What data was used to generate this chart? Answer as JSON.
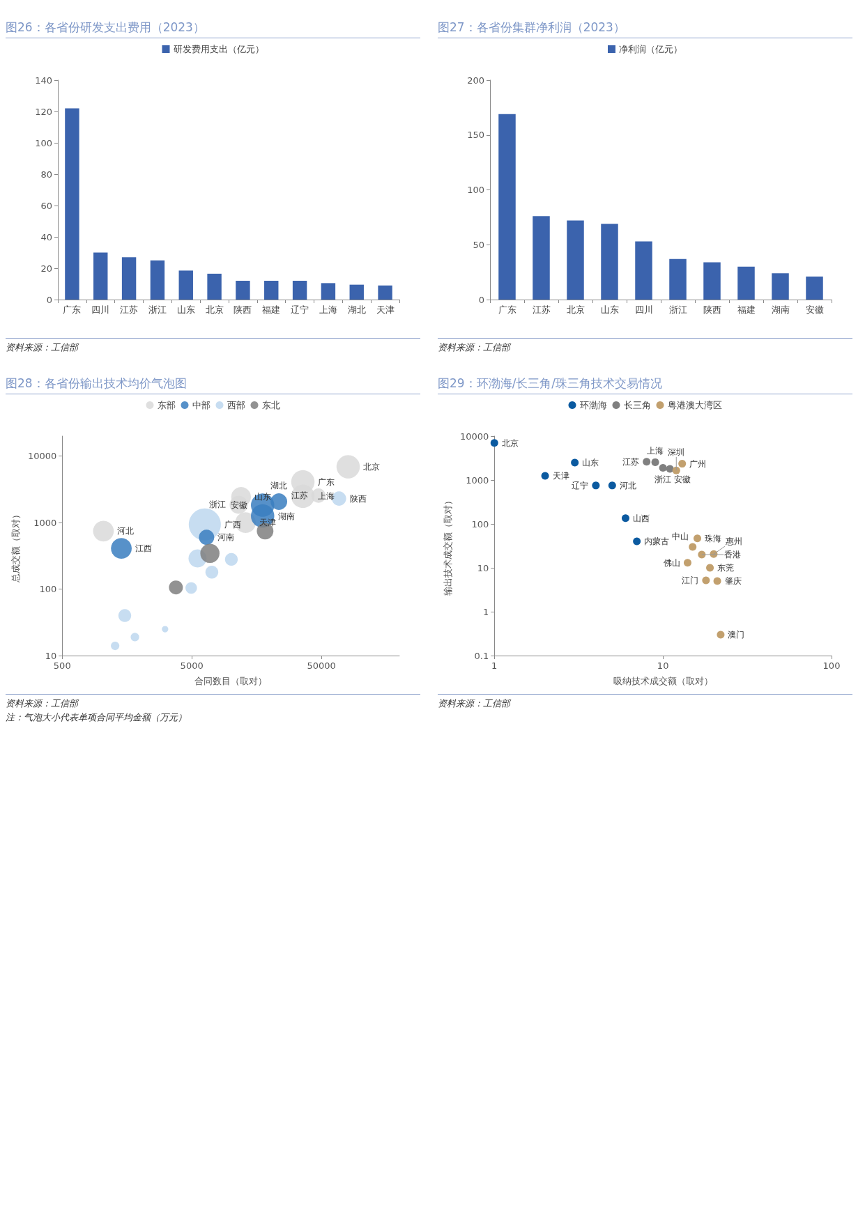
{
  "chart_data": [
    {
      "type": "bar",
      "title": "图26：各省份研发支出费用（2023）",
      "categories": [
        "广东",
        "四川",
        "江苏",
        "浙江",
        "山东",
        "北京",
        "陕西",
        "福建",
        "辽宁",
        "上海",
        "湖北",
        "天津"
      ],
      "series": [
        {
          "name": "研发费用支出（亿元）",
          "color": "#3b63ad",
          "values": [
            122,
            30,
            27,
            25,
            18.5,
            16.5,
            12,
            12,
            12,
            10.5,
            9.5,
            9
          ]
        }
      ],
      "ylim": [
        0,
        140
      ],
      "yticks": [
        0,
        20,
        40,
        60,
        80,
        100,
        120,
        140
      ],
      "legend": "top",
      "annotations": [
        "资料来源：工信部"
      ]
    },
    {
      "type": "bar",
      "title": "图27：各省份集群净利润（2023）",
      "categories": [
        "广东",
        "江苏",
        "北京",
        "山东",
        "四川",
        "浙江",
        "陕西",
        "福建",
        "湖南",
        "安徽"
      ],
      "series": [
        {
          "name": "净利润（亿元）",
          "color": "#3b63ad",
          "values": [
            169,
            76,
            72,
            69,
            53,
            37,
            34,
            30,
            24,
            21
          ]
        }
      ],
      "ylim": [
        0,
        200
      ],
      "yticks": [
        0,
        50,
        100,
        150,
        200
      ],
      "legend": "top",
      "annotations": [
        "资料来源：工信部"
      ]
    },
    {
      "type": "bubble",
      "title": "图28：各省份输出技术均价气泡图",
      "xlabel": "合同数目（取对）",
      "ylabel": "总成交额（取对）",
      "log": "xy",
      "legend": "top",
      "xlim": [
        500,
        200000
      ],
      "xticks": [
        500,
        5000,
        50000
      ],
      "ylim": [
        10,
        20000
      ],
      "yticks": [
        10,
        100,
        1000,
        10000
      ],
      "series": [
        {
          "name": "东部",
          "color": "#d9d9d9",
          "x": [
            1040,
            12000,
            11500,
            13000,
            36000,
            36000,
            47500,
            80500
          ],
          "values": [
            745,
            2440,
            1860,
            1000,
            4110,
            2490,
            2550,
            6920
          ],
          "sizes": [
            0.42,
            0.38,
            0.32,
            0.42,
            0.53,
            0.53,
            0.2,
            0.53
          ]
        },
        {
          "name": "中部",
          "color": "#3a7ebf",
          "x": [
            1430,
            6500,
            17600,
            17600,
            23500
          ],
          "values": [
            410,
            600,
            1830,
            1260,
            2070
          ],
          "sizes": [
            0.42,
            0.23,
            0.53,
            0.53,
            0.27
          ]
        },
        {
          "name": "西部",
          "color": "#bdd7ee",
          "x": [
            6300,
            68400,
            5540,
            7140,
            10100,
            4950,
            1520,
            1820,
            1280,
            3110
          ],
          "values": [
            940,
            2300,
            290,
            180,
            280,
            104,
            40,
            19,
            14,
            25
          ],
          "sizes": [
            1,
            0.2,
            0.32,
            0.16,
            0.16,
            0.13,
            0.16,
            0.07,
            0.07,
            0.04
          ]
        },
        {
          "name": "东北",
          "color": "#7f7f7f",
          "x": [
            3770,
            6900,
            18400
          ],
          "values": [
            106,
            345,
            745
          ],
          "sizes": [
            0.19,
            0.36,
            0.27
          ]
        }
      ],
      "annotations": [
        {
          "text": "河北",
          "x": 1040,
          "y": 745
        },
        {
          "text": "山东",
          "x": 12000,
          "y": 2440
        },
        {
          "text": "浙江",
          "x": 11500,
          "y": 1860
        },
        {
          "text": "天津",
          "x": 13000,
          "y": 1000
        },
        {
          "text": "广东",
          "x": 36000,
          "y": 4110
        },
        {
          "text": "上海",
          "x": 36000,
          "y": 2490
        },
        {
          "text": "江苏",
          "x": 47500,
          "y": 2550
        },
        {
          "text": "北京",
          "x": 80500,
          "y": 6920
        },
        {
          "text": "江西",
          "x": 1430,
          "y": 410
        },
        {
          "text": "河南",
          "x": 6500,
          "y": 600
        },
        {
          "text": "安徽",
          "x": 17600,
          "y": 1830
        },
        {
          "text": "湖南",
          "x": 17600,
          "y": 1260
        },
        {
          "text": "湖北",
          "x": 23500,
          "y": 2070
        },
        {
          "text": "广西",
          "x": 6300,
          "y": 940
        },
        {
          "text": "陕西",
          "x": 68400,
          "y": 2300
        },
        "资料来源：工信部",
        "注：气泡大小代表单项合同平均金额（万元）"
      ]
    },
    {
      "type": "scatter",
      "title": "图29：环渤海/长三角/珠三角技术交易情况",
      "xlabel": "吸纳技术成交额（取对）",
      "ylabel": "输出技术成交额（取对）",
      "log": "xy",
      "legend": "top",
      "marker": "circle",
      "xlim": [
        1,
        100
      ],
      "xticks": [
        1,
        10,
        100
      ],
      "ylim": [
        0.1,
        10000
      ],
      "yticks": [
        0.1,
        1,
        10,
        100,
        1000,
        10000
      ],
      "series": [
        {
          "name": "环渤海",
          "color": "#0b5aa0",
          "x": [
            1,
            2,
            3,
            4,
            5,
            6,
            7
          ],
          "values": [
            7000,
            1250,
            2500,
            750,
            750,
            135,
            40
          ]
        },
        {
          "name": "长三角",
          "color": "#808080",
          "x": [
            8,
            9,
            10,
            11
          ],
          "values": [
            2600,
            2550,
            1900,
            1800
          ]
        },
        {
          "name": "粤港澳大湾区",
          "color": "#c2a06e",
          "x": [
            12,
            13,
            14,
            15,
            16,
            17,
            18,
            19,
            20,
            21,
            22
          ],
          "values": [
            1650,
            2350,
            13,
            30,
            47,
            20,
            5.2,
            10,
            20.5,
            5,
            0.3
          ]
        }
      ],
      "annotations": [
        {
          "text": "北京",
          "x": 1,
          "y": 7000
        },
        {
          "text": "天津",
          "x": 2,
          "y": 1250
        },
        {
          "text": "山东",
          "x": 3,
          "y": 2500
        },
        {
          "text": "辽宁",
          "x": 4,
          "y": 750
        },
        {
          "text": "河北",
          "x": 5,
          "y": 750
        },
        {
          "text": "山西",
          "x": 6,
          "y": 135
        },
        {
          "text": "内蒙古",
          "x": 7,
          "y": 40
        },
        {
          "text": "江苏",
          "x": 8,
          "y": 2600
        },
        {
          "text": "上海",
          "x": 9,
          "y": 2550
        },
        {
          "text": "浙江",
          "x": 10,
          "y": 1900
        },
        {
          "text": "安徽",
          "x": 11,
          "y": 1800
        },
        {
          "text": "深圳",
          "x": 12,
          "y": 1650
        },
        {
          "text": "广州",
          "x": 13,
          "y": 2350
        },
        {
          "text": "佛山",
          "x": 14,
          "y": 13
        },
        {
          "text": "中山",
          "x": 15,
          "y": 30
        },
        {
          "text": "珠海",
          "x": 16,
          "y": 47
        },
        {
          "text": "香港",
          "x": 17,
          "y": 20
        },
        {
          "text": "江门",
          "x": 18,
          "y": 5.2
        },
        {
          "text": "东莞",
          "x": 19,
          "y": 10
        },
        {
          "text": "惠州",
          "x": 20,
          "y": 20.5
        },
        {
          "text": "肇庆",
          "x": 21,
          "y": 5
        },
        {
          "text": "澳门",
          "x": 22,
          "y": 0.3
        },
        "资料来源：工信部"
      ]
    }
  ]
}
